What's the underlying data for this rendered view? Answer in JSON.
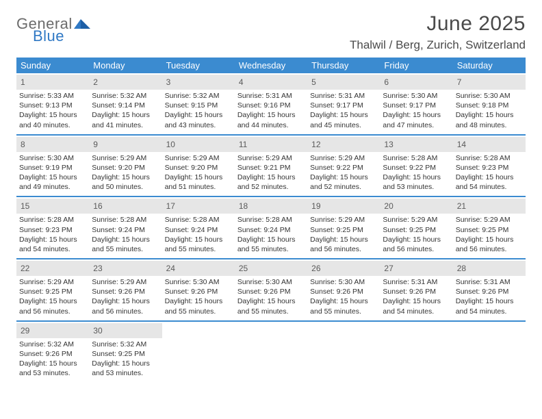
{
  "brand": {
    "top": "General",
    "bottom": "Blue"
  },
  "title": "June 2025",
  "location": "Thalwil / Berg, Zurich, Switzerland",
  "colors": {
    "header_bg": "#3b8bd0",
    "daynum_bg": "#e6e6e6",
    "border": "#3b8bd0",
    "text": "#333333",
    "logo_gray": "#6b6b6b",
    "logo_blue": "#2f78c4"
  },
  "day_labels": [
    "Sunday",
    "Monday",
    "Tuesday",
    "Wednesday",
    "Thursday",
    "Friday",
    "Saturday"
  ],
  "weeks": [
    [
      {
        "n": "1",
        "sunrise": "5:33 AM",
        "sunset": "9:13 PM",
        "daylight": "15 hours and 40 minutes."
      },
      {
        "n": "2",
        "sunrise": "5:32 AM",
        "sunset": "9:14 PM",
        "daylight": "15 hours and 41 minutes."
      },
      {
        "n": "3",
        "sunrise": "5:32 AM",
        "sunset": "9:15 PM",
        "daylight": "15 hours and 43 minutes."
      },
      {
        "n": "4",
        "sunrise": "5:31 AM",
        "sunset": "9:16 PM",
        "daylight": "15 hours and 44 minutes."
      },
      {
        "n": "5",
        "sunrise": "5:31 AM",
        "sunset": "9:17 PM",
        "daylight": "15 hours and 45 minutes."
      },
      {
        "n": "6",
        "sunrise": "5:30 AM",
        "sunset": "9:17 PM",
        "daylight": "15 hours and 47 minutes."
      },
      {
        "n": "7",
        "sunrise": "5:30 AM",
        "sunset": "9:18 PM",
        "daylight": "15 hours and 48 minutes."
      }
    ],
    [
      {
        "n": "8",
        "sunrise": "5:30 AM",
        "sunset": "9:19 PM",
        "daylight": "15 hours and 49 minutes."
      },
      {
        "n": "9",
        "sunrise": "5:29 AM",
        "sunset": "9:20 PM",
        "daylight": "15 hours and 50 minutes."
      },
      {
        "n": "10",
        "sunrise": "5:29 AM",
        "sunset": "9:20 PM",
        "daylight": "15 hours and 51 minutes."
      },
      {
        "n": "11",
        "sunrise": "5:29 AM",
        "sunset": "9:21 PM",
        "daylight": "15 hours and 52 minutes."
      },
      {
        "n": "12",
        "sunrise": "5:29 AM",
        "sunset": "9:22 PM",
        "daylight": "15 hours and 52 minutes."
      },
      {
        "n": "13",
        "sunrise": "5:28 AM",
        "sunset": "9:22 PM",
        "daylight": "15 hours and 53 minutes."
      },
      {
        "n": "14",
        "sunrise": "5:28 AM",
        "sunset": "9:23 PM",
        "daylight": "15 hours and 54 minutes."
      }
    ],
    [
      {
        "n": "15",
        "sunrise": "5:28 AM",
        "sunset": "9:23 PM",
        "daylight": "15 hours and 54 minutes."
      },
      {
        "n": "16",
        "sunrise": "5:28 AM",
        "sunset": "9:24 PM",
        "daylight": "15 hours and 55 minutes."
      },
      {
        "n": "17",
        "sunrise": "5:28 AM",
        "sunset": "9:24 PM",
        "daylight": "15 hours and 55 minutes."
      },
      {
        "n": "18",
        "sunrise": "5:28 AM",
        "sunset": "9:24 PM",
        "daylight": "15 hours and 55 minutes."
      },
      {
        "n": "19",
        "sunrise": "5:29 AM",
        "sunset": "9:25 PM",
        "daylight": "15 hours and 56 minutes."
      },
      {
        "n": "20",
        "sunrise": "5:29 AM",
        "sunset": "9:25 PM",
        "daylight": "15 hours and 56 minutes."
      },
      {
        "n": "21",
        "sunrise": "5:29 AM",
        "sunset": "9:25 PM",
        "daylight": "15 hours and 56 minutes."
      }
    ],
    [
      {
        "n": "22",
        "sunrise": "5:29 AM",
        "sunset": "9:25 PM",
        "daylight": "15 hours and 56 minutes."
      },
      {
        "n": "23",
        "sunrise": "5:29 AM",
        "sunset": "9:26 PM",
        "daylight": "15 hours and 56 minutes."
      },
      {
        "n": "24",
        "sunrise": "5:30 AM",
        "sunset": "9:26 PM",
        "daylight": "15 hours and 55 minutes."
      },
      {
        "n": "25",
        "sunrise": "5:30 AM",
        "sunset": "9:26 PM",
        "daylight": "15 hours and 55 minutes."
      },
      {
        "n": "26",
        "sunrise": "5:30 AM",
        "sunset": "9:26 PM",
        "daylight": "15 hours and 55 minutes."
      },
      {
        "n": "27",
        "sunrise": "5:31 AM",
        "sunset": "9:26 PM",
        "daylight": "15 hours and 54 minutes."
      },
      {
        "n": "28",
        "sunrise": "5:31 AM",
        "sunset": "9:26 PM",
        "daylight": "15 hours and 54 minutes."
      }
    ],
    [
      {
        "n": "29",
        "sunrise": "5:32 AM",
        "sunset": "9:26 PM",
        "daylight": "15 hours and 53 minutes."
      },
      {
        "n": "30",
        "sunrise": "5:32 AM",
        "sunset": "9:25 PM",
        "daylight": "15 hours and 53 minutes."
      },
      null,
      null,
      null,
      null,
      null
    ]
  ],
  "labels": {
    "sunrise": "Sunrise: ",
    "sunset": "Sunset: ",
    "daylight": "Daylight: "
  }
}
